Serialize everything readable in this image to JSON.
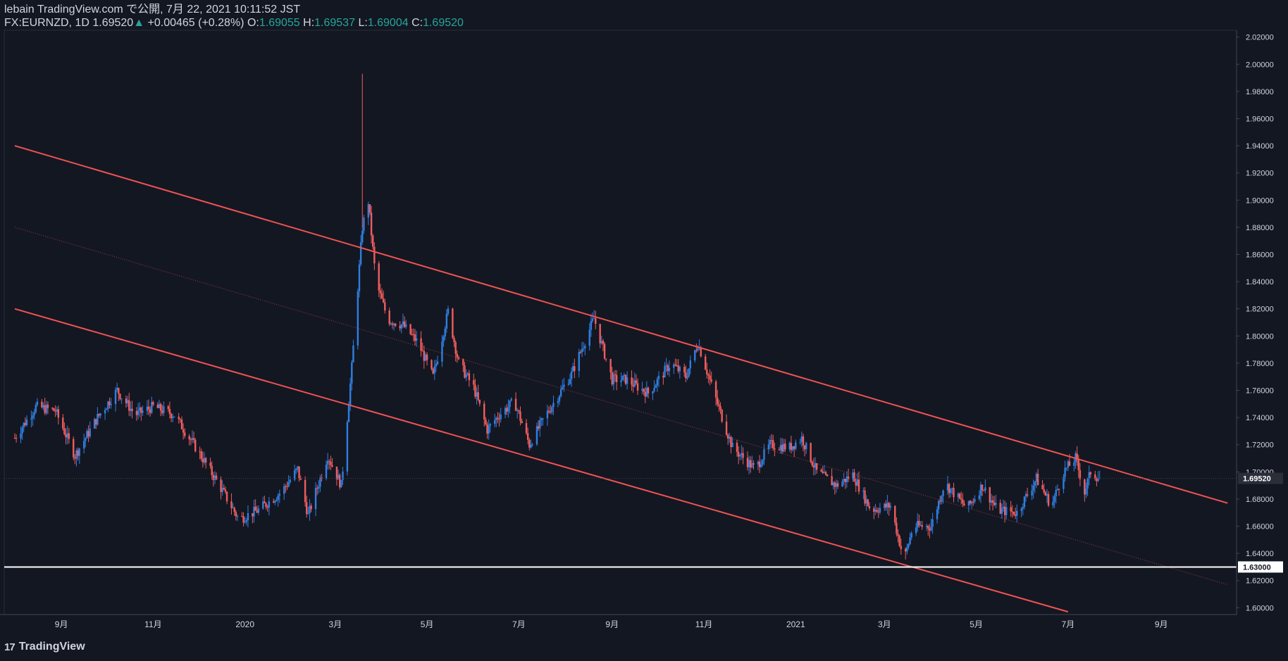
{
  "header": {
    "title": "lebain TradingView.com で公開, 7月 22, 2021 10:11:52 JST",
    "symbol": "FX:EURNZD, 1D",
    "last": "1.69520",
    "arrow": "▲",
    "change": "+0.00465 (+0.28%)",
    "o_label": "O:",
    "o_value": "1.69055",
    "h_label": "H:",
    "h_value": "1.69537",
    "l_label": "L:",
    "l_value": "1.69004",
    "c_label": "C:",
    "c_value": "1.69520"
  },
  "footer": {
    "brand": "TradingView",
    "logo": "17"
  },
  "colors": {
    "background": "#131722",
    "up_candle": "#2f7fe0",
    "down_candle": "#f05d5d",
    "channel": "#f05353",
    "support": "#ffffff",
    "axis_text": "#d1d4dc"
  },
  "chart_data": {
    "type": "candlestick",
    "symbol": "FX:EURNZD",
    "timeframe": "1D",
    "ylim": [
      1.595,
      2.025
    ],
    "x_ticks": [
      "9月",
      "11月",
      "2020",
      "3月",
      "5月",
      "7月",
      "9月",
      "11月",
      "2021",
      "3月",
      "5月",
      "7月",
      "9月"
    ],
    "y_ticks": [
      "1.60000",
      "1.62000",
      "1.64000",
      "1.66000",
      "1.68000",
      "1.70000",
      "1.72000",
      "1.74000",
      "1.76000",
      "1.78000",
      "1.80000",
      "1.82000",
      "1.84000",
      "1.86000",
      "1.88000",
      "1.90000",
      "1.92000",
      "1.94000",
      "1.96000",
      "1.98000",
      "2.00000",
      "2.02000"
    ],
    "last_price_label": "1.69520",
    "support_label": "1.63000",
    "support_level": 1.63,
    "channel": {
      "upper": [
        [
          "2019-08-01",
          1.94
        ],
        [
          "2021-10-15",
          1.677
        ]
      ],
      "median": [
        [
          "2019-08-01",
          1.88
        ],
        [
          "2021-10-15",
          1.617
        ]
      ],
      "lower": [
        [
          "2019-08-01",
          1.82
        ],
        [
          "2021-07-01",
          1.597
        ]
      ]
    },
    "close_path": [
      [
        "2019-08-01",
        1.725
      ],
      [
        "2019-08-15",
        1.748
      ],
      [
        "2019-08-28",
        1.745
      ],
      [
        "2019-09-10",
        1.712
      ],
      [
        "2019-09-25",
        1.74
      ],
      [
        "2019-10-08",
        1.76
      ],
      [
        "2019-10-20",
        1.742
      ],
      [
        "2019-11-01",
        1.748
      ],
      [
        "2019-11-15",
        1.742
      ],
      [
        "2019-12-01",
        1.715
      ],
      [
        "2019-12-15",
        1.69
      ],
      [
        "2019-12-28",
        1.665
      ],
      [
        "2020-01-10",
        1.672
      ],
      [
        "2020-01-25",
        1.685
      ],
      [
        "2020-02-05",
        1.702
      ],
      [
        "2020-02-12",
        1.668
      ],
      [
        "2020-02-25",
        1.712
      ],
      [
        "2020-03-05",
        1.69
      ],
      [
        "2020-03-12",
        1.777
      ],
      [
        "2020-03-19",
        1.88
      ],
      [
        "2020-03-23",
        1.899
      ],
      [
        "2020-03-28",
        1.84
      ],
      [
        "2020-04-05",
        1.812
      ],
      [
        "2020-04-15",
        1.808
      ],
      [
        "2020-04-25",
        1.795
      ],
      [
        "2020-05-05",
        1.77
      ],
      [
        "2020-05-15",
        1.818
      ],
      [
        "2020-05-22",
        1.78
      ],
      [
        "2020-06-01",
        1.762
      ],
      [
        "2020-06-10",
        1.731
      ],
      [
        "2020-06-18",
        1.742
      ],
      [
        "2020-06-28",
        1.752
      ],
      [
        "2020-07-08",
        1.72
      ],
      [
        "2020-07-18",
        1.74
      ],
      [
        "2020-08-05",
        1.772
      ],
      [
        "2020-08-20",
        1.813
      ],
      [
        "2020-09-01",
        1.768
      ],
      [
        "2020-09-10",
        1.768
      ],
      [
        "2020-09-25",
        1.758
      ],
      [
        "2020-10-10",
        1.78
      ],
      [
        "2020-10-20",
        1.77
      ],
      [
        "2020-10-28",
        1.795
      ],
      [
        "2020-11-10",
        1.75
      ],
      [
        "2020-11-20",
        1.718
      ],
      [
        "2020-12-05",
        1.702
      ],
      [
        "2020-12-15",
        1.72
      ],
      [
        "2020-12-28",
        1.718
      ],
      [
        "2021-01-05",
        1.725
      ],
      [
        "2021-01-15",
        1.7
      ],
      [
        "2021-01-28",
        1.69
      ],
      [
        "2021-02-08",
        1.698
      ],
      [
        "2021-02-20",
        1.672
      ],
      [
        "2021-03-05",
        1.675
      ],
      [
        "2021-03-14",
        1.635
      ],
      [
        "2021-03-20",
        1.66
      ],
      [
        "2021-04-01",
        1.66
      ],
      [
        "2021-04-10",
        1.692
      ],
      [
        "2021-04-25",
        1.673
      ],
      [
        "2021-05-05",
        1.69
      ],
      [
        "2021-05-15",
        1.672
      ],
      [
        "2021-05-28",
        1.67
      ],
      [
        "2021-06-10",
        1.695
      ],
      [
        "2021-06-20",
        1.675
      ],
      [
        "2021-06-28",
        1.7
      ],
      [
        "2021-07-06",
        1.71
      ],
      [
        "2021-07-12",
        1.685
      ],
      [
        "2021-07-16",
        1.7
      ],
      [
        "2021-07-22",
        1.695
      ]
    ]
  }
}
